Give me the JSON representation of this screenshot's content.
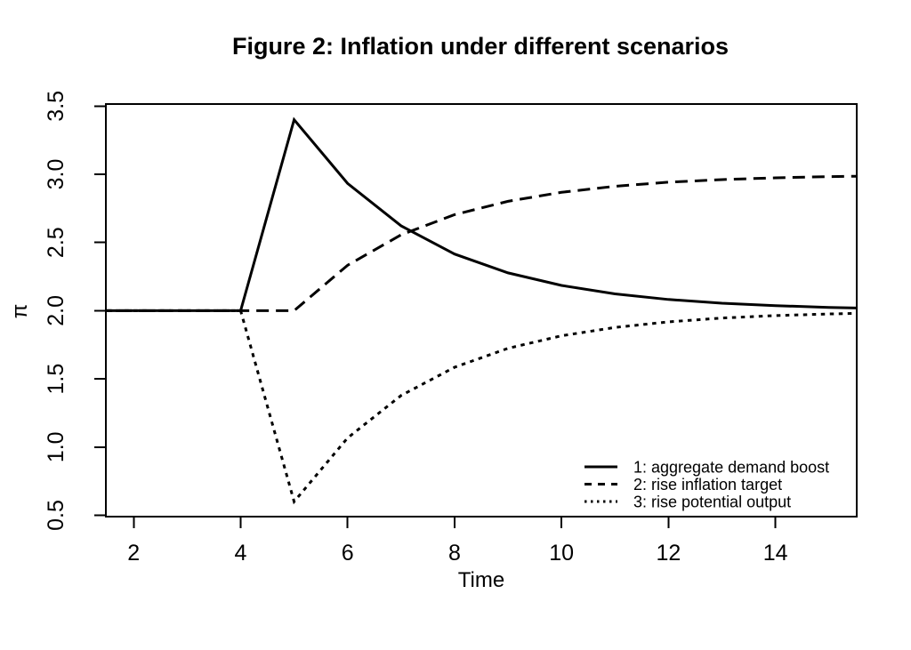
{
  "chart_data": {
    "type": "line",
    "title": "Figure 2: Inflation under different scenarios",
    "xlabel": "Time",
    "ylabel": "π",
    "x_ticks": [
      2,
      4,
      6,
      8,
      10,
      12,
      14
    ],
    "y_ticks": [
      "0.5",
      "1.0",
      "1.5",
      "2.0",
      "2.5",
      "3.0",
      "3.5"
    ],
    "xlim": [
      1.48,
      15.52
    ],
    "ylim": [
      0.49,
      3.515
    ],
    "grid": false,
    "x": [
      1,
      2,
      3,
      4,
      5,
      6,
      7,
      8,
      9,
      10,
      11,
      12,
      13,
      14,
      15,
      16
    ],
    "series": [
      {
        "name": "1: aggregate demand boost",
        "style": "solid",
        "values": [
          2,
          2,
          2,
          2,
          3.4,
          2.933,
          2.622,
          2.415,
          2.277,
          2.185,
          2.123,
          2.082,
          2.055,
          2.037,
          2.024,
          2.016
        ]
      },
      {
        "name": "2: rise inflation target",
        "style": "dashed",
        "values": [
          2,
          2,
          2,
          2,
          2,
          2.333,
          2.556,
          2.704,
          2.802,
          2.868,
          2.912,
          2.942,
          2.961,
          2.974,
          2.983,
          2.988
        ]
      },
      {
        "name": "3: rise potential output",
        "style": "dotted",
        "values": [
          2,
          2,
          2,
          2,
          0.6,
          1.067,
          1.378,
          1.585,
          1.724,
          1.816,
          1.877,
          1.918,
          1.946,
          1.964,
          1.976,
          1.984
        ]
      }
    ],
    "legend": {
      "position": "bottom-right",
      "border": false
    },
    "colors": {
      "line": "#000000",
      "background": "#ffffff"
    },
    "baseline_value": 2.0,
    "peak_value": 3.4,
    "trough_value": 0.6
  }
}
